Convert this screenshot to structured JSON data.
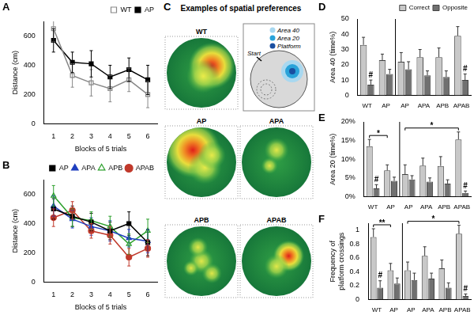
{
  "chart_data": [
    {
      "panel": "A",
      "type": "line",
      "x_label": "Blocks of 5 trials",
      "y_label": "Distance (cm)",
      "x": [
        1,
        2,
        3,
        4,
        5,
        6
      ],
      "xlim": [
        0.5,
        6.5
      ],
      "xticks": [
        1,
        2,
        3,
        4,
        5,
        6
      ],
      "ylim": [
        0,
        700
      ],
      "yticks": [
        0,
        200,
        400,
        600
      ],
      "grid": false,
      "legend": "top-right",
      "series": [
        {
          "name": "WT",
          "color": "#888888",
          "marker": "open_square",
          "values": [
            650,
            330,
            280,
            240,
            300,
            200
          ],
          "errors": [
            90,
            80,
            90,
            90,
            80,
            90
          ]
        },
        {
          "name": "AP",
          "color": "#000000",
          "marker": "square",
          "values": [
            570,
            420,
            410,
            320,
            370,
            300
          ],
          "errors": [
            80,
            70,
            90,
            80,
            80,
            100
          ]
        }
      ]
    },
    {
      "panel": "B",
      "type": "line",
      "x_label": "Blocks of 5 trials",
      "y_label": "Distance (cm)",
      "x": [
        1,
        2,
        3,
        4,
        5,
        6
      ],
      "xlim": [
        0.5,
        6.5
      ],
      "xticks": [
        1,
        2,
        3,
        4,
        5,
        6
      ],
      "ylim": [
        0,
        700
      ],
      "yticks": [
        0,
        200,
        400,
        600
      ],
      "grid": false,
      "legend": "top-right",
      "series": [
        {
          "name": "AP",
          "color": "#000000",
          "marker": "square",
          "values": [
            500,
            450,
            410,
            350,
            400,
            270
          ],
          "errors": [
            70,
            70,
            60,
            60,
            80,
            90
          ]
        },
        {
          "name": "APA",
          "color": "#1f3fbf",
          "marker": "triangle",
          "values": [
            520,
            430,
            380,
            350,
            300,
            280
          ],
          "errors": [
            70,
            60,
            60,
            70,
            60,
            80
          ]
        },
        {
          "name": "APB",
          "color": "#2ca02c",
          "marker": "open_triangle",
          "values": [
            590,
            440,
            420,
            380,
            260,
            350
          ],
          "errors": [
            70,
            60,
            60,
            70,
            70,
            80
          ]
        },
        {
          "name": "APAB",
          "color": "#c0392b",
          "marker": "circle",
          "values": [
            440,
            490,
            350,
            320,
            170,
            230
          ],
          "errors": [
            60,
            60,
            50,
            60,
            60,
            60
          ]
        }
      ]
    },
    {
      "panel": "D",
      "type": "bar",
      "y_label": "Area 40 (time%)",
      "categories": [
        "WT",
        "AP",
        "AP",
        "APA",
        "APB",
        "APAB"
      ],
      "ylim": [
        0,
        50
      ],
      "yticks": [
        0,
        10,
        20,
        30,
        40,
        50
      ],
      "grid": false,
      "legend": "top-right",
      "series": [
        {
          "name": "Correct",
          "color": "#c8c8c8",
          "values": [
            33,
            23,
            22,
            25,
            25,
            39
          ],
          "errors": [
            5,
            4,
            6,
            5,
            6,
            6
          ]
        },
        {
          "name": "Opposite",
          "color": "#707070",
          "values": [
            7,
            14,
            17,
            13,
            12,
            10
          ],
          "errors": [
            3,
            3,
            5,
            3,
            4,
            4
          ]
        }
      ],
      "annotations": [
        {
          "text": "#",
          "series": "Opposite",
          "category": 0
        },
        {
          "text": "#",
          "series": "Opposite",
          "category": 5
        }
      ]
    },
    {
      "panel": "E",
      "type": "bar",
      "y_label": "Area 20 (time%)",
      "categories": [
        "WT",
        "AP",
        "AP",
        "APA",
        "APB",
        "APAB"
      ],
      "ylim": [
        0,
        20
      ],
      "yticks": [
        {
          "value": 0,
          "label": "0%"
        },
        {
          "value": 5,
          "label": "5%"
        },
        {
          "value": 10,
          "label": "10%"
        },
        {
          "value": 15,
          "label": "15%"
        },
        {
          "value": 20,
          "label": "20%"
        }
      ],
      "grid": false,
      "series": [
        {
          "name": "Correct",
          "color": "#c8c8c8",
          "values": [
            13.5,
            7,
            6,
            8.3,
            8.2,
            15.3
          ],
          "errors": [
            1.8,
            1.5,
            2.5,
            2,
            2.5,
            2
          ]
        },
        {
          "name": "Opposite",
          "color": "#707070",
          "values": [
            2.2,
            4.2,
            4.6,
            4,
            3.5,
            1
          ],
          "errors": [
            1,
            1,
            1,
            1,
            1,
            0.5
          ]
        }
      ],
      "annotations": [
        {
          "text": "*",
          "from": 0,
          "to": 1
        },
        {
          "text": "*",
          "from": 2,
          "to": 5
        },
        {
          "text": "#",
          "series": "Opposite",
          "category": 0
        },
        {
          "text": "#",
          "series": "Opposite",
          "category": 5
        }
      ]
    },
    {
      "panel": "F",
      "type": "bar",
      "y_label": [
        "Frequency of",
        "platform crossings"
      ],
      "categories": [
        "WT",
        "AP",
        "AP",
        "APA",
        "APB",
        "APAB"
      ],
      "ylim": [
        0,
        1.1
      ],
      "yticks": [
        0,
        0.2,
        0.4,
        0.6,
        0.8,
        1
      ],
      "grid": false,
      "series": [
        {
          "name": "Correct",
          "color": "#c8c8c8",
          "values": [
            0.9,
            0.42,
            0.42,
            0.63,
            0.45,
            0.95
          ],
          "errors": [
            0.12,
            0.1,
            0.12,
            0.13,
            0.12,
            0.12
          ]
        },
        {
          "name": "Opposite",
          "color": "#707070",
          "values": [
            0.17,
            0.23,
            0.28,
            0.3,
            0.17,
            0.05
          ],
          "errors": [
            0.1,
            0.08,
            0.1,
            0.08,
            0.07,
            0.03
          ]
        }
      ],
      "annotations": [
        {
          "text": "**",
          "from": 0,
          "to": 1
        },
        {
          "text": "*",
          "from": 2,
          "to": 5
        },
        {
          "text": "#",
          "series": "Opposite",
          "category": 0
        },
        {
          "text": "#",
          "series": "Opposite",
          "category": 5
        }
      ]
    }
  ],
  "spatial": {
    "panel": "C",
    "title": "Examples of spatial preferences",
    "maps": [
      "WT",
      "AP",
      "APA",
      "APB",
      "APAB"
    ],
    "schematic": {
      "labels": [
        "Area 40",
        "Area 20",
        "Platform"
      ],
      "start": "Start"
    }
  }
}
